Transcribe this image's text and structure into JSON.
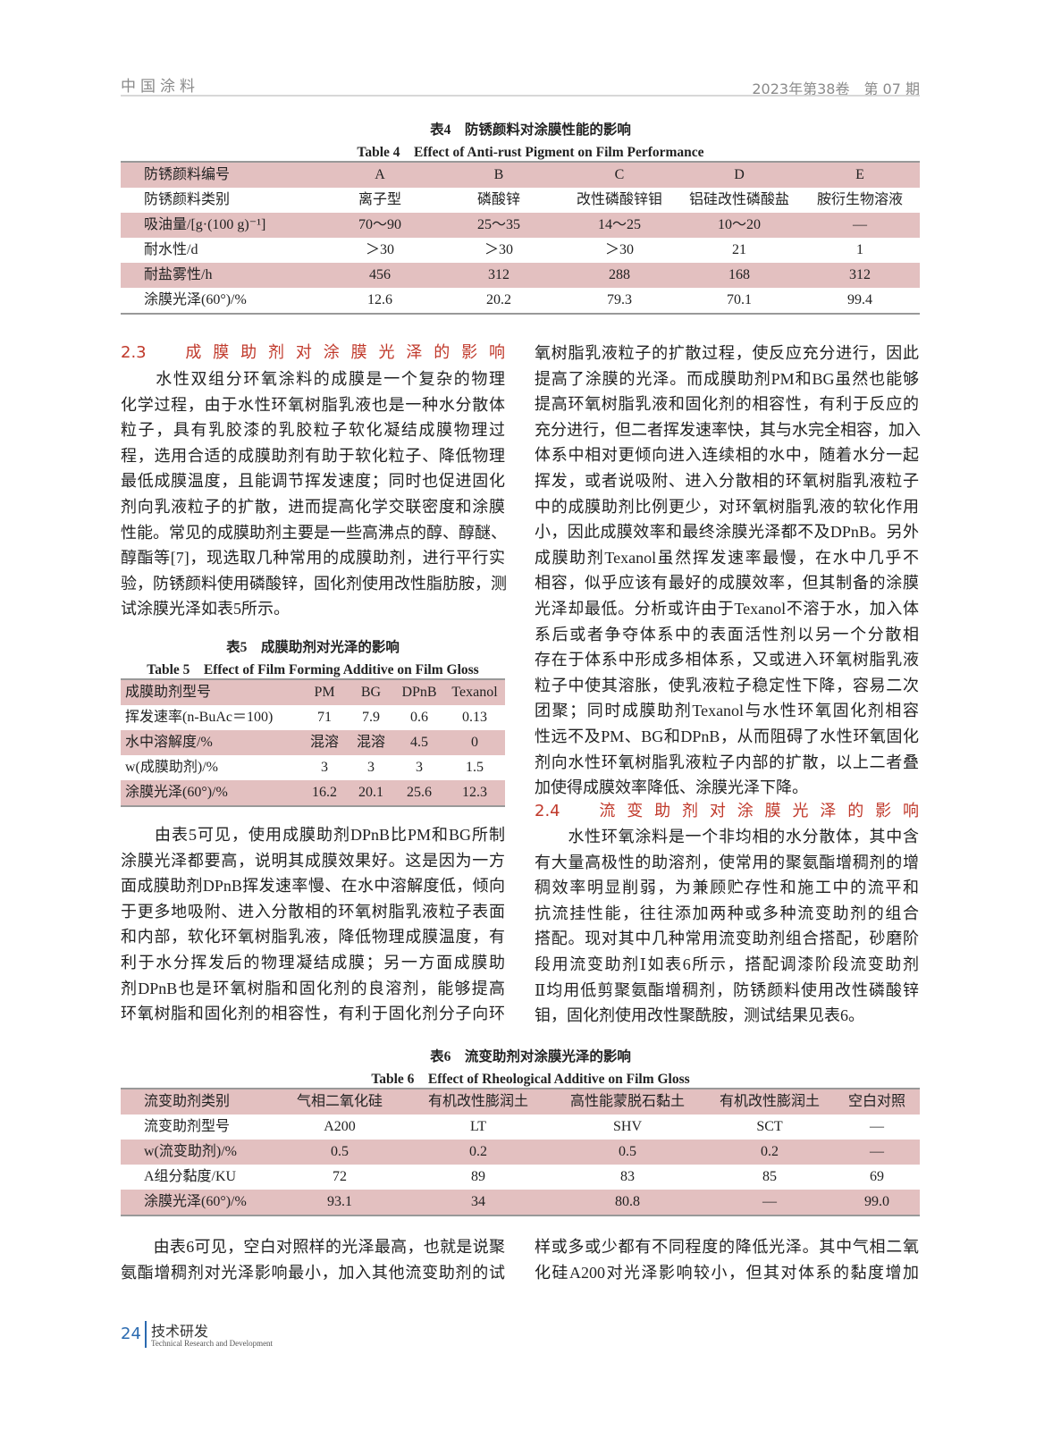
{
  "header": {
    "journal": "中国涂料",
    "issue": "2023年第38卷　第 07 期"
  },
  "table4": {
    "title_cn": "表4　防锈颜料对涂膜性能的影响",
    "title_en": "Table 4　Effect of Anti-rust Pigment on Film Performance",
    "rows": [
      [
        "防锈颜料编号",
        "A",
        "B",
        "C",
        "D",
        "E"
      ],
      [
        "防锈颜料类别",
        "离子型",
        "磷酸锌",
        "改性磷酸锌钼",
        "铝硅改性磷酸盐",
        "胺衍生物溶液"
      ],
      [
        "吸油量/[g·(100 g)⁻¹]",
        "70～90",
        "25～35",
        "14～25",
        "10～20",
        "—"
      ],
      [
        "耐水性/d",
        "＞30",
        "＞30",
        "＞30",
        "21",
        "1"
      ],
      [
        "耐盐雾性/h",
        "456",
        "312",
        "288",
        "168",
        "312"
      ],
      [
        "涂膜光泽(60°)/%",
        "12.6",
        "20.2",
        "79.3",
        "70.1",
        "99.4"
      ]
    ]
  },
  "section23": {
    "heading": "2.3　成膜助剂对涂膜光泽的影响",
    "lines": [
      "　　水性双组分环氧涂料的成膜是一个复杂的物理",
      "化学过程，由于水性环氧树脂乳液也是一种水分散体",
      "粒子，具有乳胶漆的乳胶粒子软化凝结成膜物理过",
      "程，选用合适的成膜助剂有助于软化粒子、降低物理",
      "最低成膜温度，且能调节挥发速度；同时也促进固化",
      "剂向乳液粒子的扩散，进而提高化学交联密度和涂膜",
      "性能。常见的成膜助剂主要是一些高沸点的醇、醇醚、",
      "醇酯等[7]，现选取几种常用的成膜助剂，进行平行实",
      "验，防锈颜料使用磷酸锌，固化剂使用改性脂肪胺，测",
      "试涂膜光泽如表5所示。"
    ]
  },
  "table5": {
    "title_cn": "表5　成膜助剂对光泽的影响",
    "title_en": "Table 5　Effect of Film Forming Additive on Film Gloss",
    "rows": [
      [
        "成膜助剂型号",
        "PM",
        "BG",
        "DPnB",
        "Texanol"
      ],
      [
        "挥发速率(n-BuAc＝100)",
        "71",
        "7.9",
        "0.6",
        "0.13"
      ],
      [
        "水中溶解度/%",
        "混溶",
        "混溶",
        "4.5",
        "0"
      ],
      [
        "w(成膜助剂)/%",
        "3",
        "3",
        "3",
        "1.5"
      ],
      [
        "涂膜光泽(60°)/%",
        "16.2",
        "20.1",
        "25.6",
        "12.3"
      ]
    ]
  },
  "para_t5": [
    "　　由表5可见，使用成膜助剂DPnB比PM和BG所制",
    "涂膜光泽都要高，说明其成膜效果好。这是因为一方",
    "面成膜助剂DPnB挥发速率慢、在水中溶解度低，倾向",
    "于更多地吸附、进入分散相的环氧树脂乳液粒子表面",
    "和内部，软化环氧树脂乳液，降低物理成膜温度，有",
    "利于水分挥发后的物理凝结成膜；另一方面成膜助",
    "剂DPnB也是环氧树脂和固化剂的良溶剂，能够提高",
    "环氧树脂和固化剂的相容性，有利于固化剂分子向环"
  ],
  "right_col": [
    "氧树脂乳液粒子的扩散过程，使反应充分进行，因此",
    "提高了涂膜的光泽。而成膜助剂PM和BG虽然也能够",
    "提高环氧树脂乳液和固化剂的相容性，有利于反应的",
    "充分进行，但二者挥发速率快，其与水完全相容，加入",
    "体系中相对更倾向进入连续相的水中，随着水分一起",
    "挥发，或者说吸附、进入分散相的环氧树脂乳液粒子",
    "中的成膜助剂比例更少，对环氧树脂乳液的软化作用",
    "小，因此成膜效率和最终涂膜光泽都不及DPnB。另外",
    "成膜助剂Texanol虽然挥发速率最慢，在水中几乎不",
    "相容，似乎应该有最好的成膜效率，但其制备的涂膜",
    "光泽却最低。分析或许由于Texanol不溶于水，加入体",
    "系后或者争夺体系中的表面活性剂以另一个分散相",
    "存在于体系中形成多相体系，又或进入环氧树脂乳液",
    "粒子中使其溶胀，使乳液粒子稳定性下降，容易二次",
    "团聚；同时成膜助剂Texanol与水性环氧固化剂相容",
    "性远不及PM、BG和DPnB，从而阻碍了水性环氧固化",
    "剂向水性环氧树脂乳液粒子内部的扩散，以上二者叠",
    "加使得成膜效率降低、涂膜光泽下降。"
  ],
  "section24": {
    "heading": "2.4　流变助剂对涂膜光泽的影响",
    "lines": [
      "　　水性环氧涂料是一个非均相的水分散体，其中含",
      "有大量高极性的助溶剂，使常用的聚氨酯增稠剂的增",
      "稠效率明显削弱，为兼顾贮存性和施工中的流平和",
      "抗流挂性能，往往添加两种或多种流变助剂的组合",
      "搭配。现对其中几种常用流变助剂组合搭配，砂磨阶",
      "段用流变助剂Ⅰ如表6所示，搭配调漆阶段流变助剂",
      "Ⅱ均用低剪聚氨酯增稠剂，防锈颜料使用改性磷酸锌",
      "钼，固化剂使用改性聚酰胺，测试结果见表6。"
    ]
  },
  "table6": {
    "title_cn": "表6　流变助剂对涂膜光泽的影响",
    "title_en": "Table 6　Effect of Rheological Additive on Film Gloss",
    "rows": [
      [
        "流变助剂类别",
        "气相二氧化硅",
        "有机改性膨润土",
        "高性能蒙脱石黏土",
        "有机改性膨润土",
        "空白对照"
      ],
      [
        "流变助剂型号",
        "A200",
        "LT",
        "SHV",
        "SCT",
        "—"
      ],
      [
        "w(流变助剂)/%",
        "0.5",
        "0.2",
        "0.5",
        "0.2",
        "—"
      ],
      [
        "A组分黏度/KU",
        "72",
        "89",
        "83",
        "85",
        "69"
      ],
      [
        "涂膜光泽(60°)/%",
        "93.1",
        "34",
        "80.8",
        "—",
        "99.0"
      ]
    ]
  },
  "bottom_left": [
    "　　由表6可见，空白对照样的光泽最高，也就是说聚",
    "氨酯增稠剂对光泽影响最小，加入其他流变助剂的试"
  ],
  "bottom_right": [
    "样或多或少都有不同程度的降低光泽。其中气相二氧",
    "化硅A200对光泽影响较小，但其对体系的黏度增加"
  ],
  "footer": {
    "page": "24",
    "section_cn": "技术研发",
    "section_en": "Technical Research and Development"
  },
  "colors": {
    "section_heading": "#c0392b",
    "table_shade": "#e3c0c0",
    "footer_blue": "#2a6ab0"
  }
}
